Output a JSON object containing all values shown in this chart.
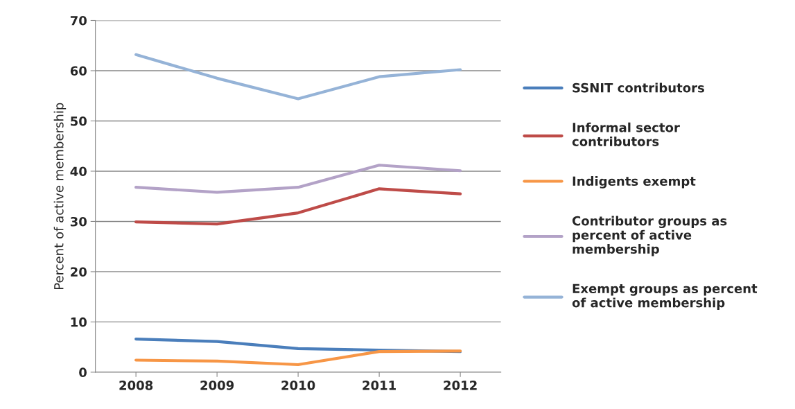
{
  "chart_data": {
    "type": "line",
    "ylabel": "Percent of active membership",
    "categories": [
      "2008",
      "2009",
      "2010",
      "2011",
      "2012"
    ],
    "series": [
      {
        "name": "SSNIT contributors",
        "color": "#4a7ebb",
        "values": [
          6.6,
          6.1,
          4.7,
          4.4,
          4.1
        ]
      },
      {
        "name": "Informal sector contributors",
        "color": "#be4b48",
        "values": [
          29.9,
          29.5,
          31.7,
          36.5,
          35.5
        ]
      },
      {
        "name": "Indigents exempt",
        "color": "#f79646",
        "values": [
          2.4,
          2.2,
          1.5,
          4.1,
          4.2
        ]
      },
      {
        "name": "Contributor groups as percent of active membership",
        "color": "#b3a2c7",
        "values": [
          36.8,
          35.8,
          36.8,
          41.2,
          40.1
        ]
      },
      {
        "name": "Exempt groups as percent of active membership",
        "color": "#95b3d7",
        "values": [
          63.2,
          58.5,
          54.4,
          58.8,
          60.2
        ]
      }
    ],
    "ylim": [
      0,
      70
    ],
    "yticks": [
      0,
      10,
      20,
      30,
      40,
      50,
      60,
      70
    ],
    "grid": "y",
    "legend": "right",
    "marker": "none",
    "line_style": "solid"
  }
}
